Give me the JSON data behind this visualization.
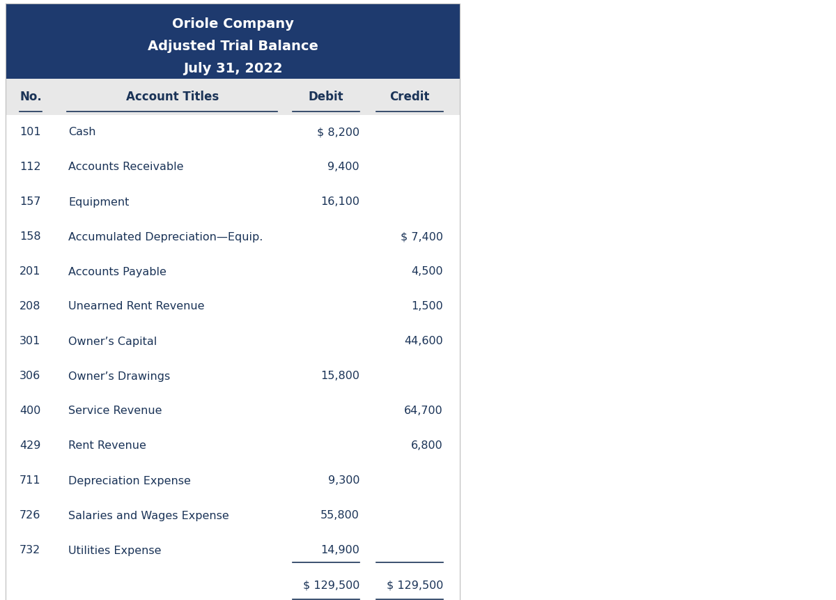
{
  "title_line1": "Oriole Company",
  "title_line2": "Adjusted Trial Balance",
  "title_line3": "July 31, 2022",
  "header_bg_color": "#1e3a6e",
  "header_text_color": "#ffffff",
  "col_header_bg": "#e8e8e8",
  "body_text_color": "#1a3357",
  "rows": [
    {
      "no": "101",
      "account": "Cash",
      "debit": "$ 8,200",
      "credit": ""
    },
    {
      "no": "112",
      "account": "Accounts Receivable",
      "debit": "9,400",
      "credit": ""
    },
    {
      "no": "157",
      "account": "Equipment",
      "debit": "16,100",
      "credit": ""
    },
    {
      "no": "158",
      "account": "Accumulated Depreciation—Equip.",
      "debit": "",
      "credit": "$ 7,400"
    },
    {
      "no": "201",
      "account": "Accounts Payable",
      "debit": "",
      "credit": "4,500"
    },
    {
      "no": "208",
      "account": "Unearned Rent Revenue",
      "debit": "",
      "credit": "1,500"
    },
    {
      "no": "301",
      "account": "Owner’s Capital",
      "debit": "",
      "credit": "44,600"
    },
    {
      "no": "306",
      "account": "Owner’s Drawings",
      "debit": "15,800",
      "credit": ""
    },
    {
      "no": "400",
      "account": "Service Revenue",
      "debit": "",
      "credit": "64,700"
    },
    {
      "no": "429",
      "account": "Rent Revenue",
      "debit": "",
      "credit": "6,800"
    },
    {
      "no": "711",
      "account": "Depreciation Expense",
      "debit": "9,300",
      "credit": ""
    },
    {
      "no": "726",
      "account": "Salaries and Wages Expense",
      "debit": "55,800",
      "credit": ""
    },
    {
      "no": "732",
      "account": "Utilities Expense",
      "debit": "14,900",
      "credit": ""
    }
  ],
  "totals_debit": "$ 129,500",
  "totals_credit": "$ 129,500",
  "font_size_title": 14,
  "font_size_header": 12,
  "font_size_body": 11.5
}
